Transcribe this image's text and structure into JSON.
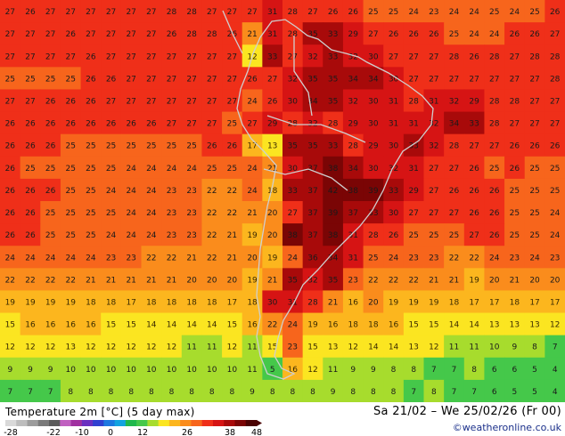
{
  "map": {
    "title": "Temperature 2m [°C] (5 day max)",
    "date_range": "Sa 21/02 – We 25/02/26 (Fr 00)",
    "credit": "©weatheronline.co.uk",
    "legend_ticks": [
      "-28",
      "-22",
      "-10",
      "0",
      "12",
      "26",
      "38",
      "48"
    ],
    "value_grid": [
      [
        "27",
        "26",
        "27",
        "27",
        "27",
        "27",
        "27",
        "27",
        "28",
        "28",
        "27",
        "27",
        "27",
        "31",
        "28",
        "27",
        "26",
        "26",
        "25",
        "25",
        "24",
        "23",
        "24",
        "24",
        "25",
        "24",
        "25",
        "26"
      ],
      [
        "27",
        "27",
        "27",
        "26",
        "27",
        "27",
        "27",
        "27",
        "26",
        "28",
        "28",
        "26",
        "21",
        "31",
        "28",
        "35",
        "33",
        "29",
        "27",
        "26",
        "26",
        "26",
        "25",
        "24",
        "24",
        "26",
        "26",
        "27"
      ],
      [
        "27",
        "27",
        "27",
        "27",
        "26",
        "27",
        "27",
        "27",
        "27",
        "27",
        "27",
        "27",
        "12",
        "33",
        "27",
        "32",
        "33",
        "32",
        "30",
        "27",
        "27",
        "27",
        "28",
        "26",
        "28",
        "27",
        "28",
        "28"
      ],
      [
        "25",
        "25",
        "25",
        "25",
        "26",
        "26",
        "27",
        "27",
        "27",
        "27",
        "27",
        "27",
        "26",
        "27",
        "32",
        "35",
        "35",
        "34",
        "34",
        "30",
        "27",
        "27",
        "27",
        "27",
        "27",
        "27",
        "27",
        "28"
      ],
      [
        "27",
        "27",
        "26",
        "26",
        "26",
        "27",
        "27",
        "27",
        "27",
        "27",
        "27",
        "27",
        "24",
        "26",
        "30",
        "34",
        "35",
        "32",
        "30",
        "31",
        "28",
        "31",
        "32",
        "29",
        "28",
        "28",
        "27",
        "27"
      ],
      [
        "26",
        "26",
        "26",
        "26",
        "26",
        "26",
        "26",
        "26",
        "27",
        "27",
        "27",
        "25",
        "27",
        "29",
        "28",
        "32",
        "28",
        "29",
        "30",
        "31",
        "31",
        "32",
        "34",
        "33",
        "28",
        "27",
        "27",
        "27"
      ],
      [
        "26",
        "26",
        "26",
        "25",
        "25",
        "25",
        "25",
        "25",
        "25",
        "25",
        "26",
        "26",
        "17",
        "13",
        "35",
        "35",
        "33",
        "28",
        "29",
        "30",
        "33",
        "32",
        "28",
        "27",
        "27",
        "26",
        "26",
        "26"
      ],
      [
        "26",
        "25",
        "25",
        "25",
        "25",
        "25",
        "24",
        "24",
        "24",
        "24",
        "25",
        "25",
        "24",
        "21",
        "30",
        "37",
        "38",
        "34",
        "30",
        "32",
        "31",
        "27",
        "27",
        "26",
        "25",
        "26",
        "25",
        "25"
      ],
      [
        "26",
        "26",
        "26",
        "25",
        "25",
        "24",
        "24",
        "24",
        "23",
        "23",
        "22",
        "22",
        "24",
        "18",
        "33",
        "37",
        "42",
        "38",
        "39",
        "33",
        "29",
        "27",
        "26",
        "26",
        "26",
        "25",
        "25",
        "25"
      ],
      [
        "26",
        "26",
        "25",
        "25",
        "25",
        "25",
        "24",
        "24",
        "23",
        "23",
        "22",
        "22",
        "21",
        "20",
        "27",
        "37",
        "39",
        "37",
        "33",
        "30",
        "27",
        "27",
        "27",
        "26",
        "26",
        "25",
        "25",
        "24"
      ],
      [
        "26",
        "26",
        "25",
        "25",
        "25",
        "24",
        "24",
        "24",
        "23",
        "23",
        "22",
        "21",
        "19",
        "20",
        "38",
        "37",
        "38",
        "31",
        "28",
        "26",
        "25",
        "25",
        "25",
        "27",
        "26",
        "25",
        "25",
        "24"
      ],
      [
        "24",
        "24",
        "24",
        "24",
        "24",
        "23",
        "23",
        "22",
        "22",
        "21",
        "22",
        "21",
        "20",
        "19",
        "24",
        "36",
        "34",
        "31",
        "25",
        "24",
        "23",
        "23",
        "22",
        "22",
        "24",
        "23",
        "24",
        "23"
      ],
      [
        "22",
        "22",
        "22",
        "22",
        "21",
        "21",
        "21",
        "21",
        "21",
        "20",
        "20",
        "20",
        "19",
        "21",
        "35",
        "32",
        "35",
        "23",
        "22",
        "22",
        "22",
        "21",
        "21",
        "19",
        "20",
        "21",
        "20",
        "20"
      ],
      [
        "19",
        "19",
        "19",
        "19",
        "18",
        "18",
        "17",
        "18",
        "18",
        "18",
        "18",
        "17",
        "18",
        "30",
        "31",
        "28",
        "21",
        "16",
        "20",
        "19",
        "19",
        "19",
        "18",
        "17",
        "17",
        "18",
        "17",
        "17"
      ],
      [
        "15",
        "16",
        "16",
        "16",
        "16",
        "15",
        "15",
        "14",
        "14",
        "14",
        "14",
        "15",
        "16",
        "22",
        "24",
        "19",
        "16",
        "18",
        "18",
        "16",
        "15",
        "15",
        "14",
        "14",
        "13",
        "13",
        "13",
        "12"
      ],
      [
        "12",
        "12",
        "12",
        "13",
        "12",
        "12",
        "12",
        "12",
        "12",
        "11",
        "11",
        "12",
        "11",
        "15",
        "23",
        "15",
        "13",
        "12",
        "14",
        "14",
        "13",
        "12",
        "11",
        "11",
        "10",
        "9",
        "8",
        "7"
      ],
      [
        "9",
        "9",
        "9",
        "10",
        "10",
        "10",
        "10",
        "10",
        "10",
        "10",
        "10",
        "10",
        "11",
        "5",
        "16",
        "12",
        "11",
        "9",
        "9",
        "8",
        "8",
        "7",
        "7",
        "8",
        "6",
        "6",
        "5",
        "4"
      ],
      [
        "7",
        "7",
        "7",
        "8",
        "8",
        "8",
        "8",
        "8",
        "8",
        "8",
        "8",
        "8",
        "9",
        "8",
        "8",
        "8",
        "9",
        "8",
        "8",
        "8",
        "7",
        "8",
        "7",
        "7",
        "6",
        "5",
        "5",
        "4"
      ]
    ],
    "palette": {
      "lt0": "#12a3e0",
      "t0_4": "#1fb84c",
      "t4_8": "#45c84a",
      "t8_12": "#a7dc2d",
      "t12_16": "#fbe521",
      "t16_20": "#fcb61e",
      "t20_23": "#fa8c1c",
      "t23_26": "#f7651c",
      "t26_29": "#ef2f19",
      "t29_33": "#d61414",
      "t33_38": "#a80a0a",
      "t38_plus": "#7a0505",
      "coast": "#c9c9c9"
    }
  }
}
